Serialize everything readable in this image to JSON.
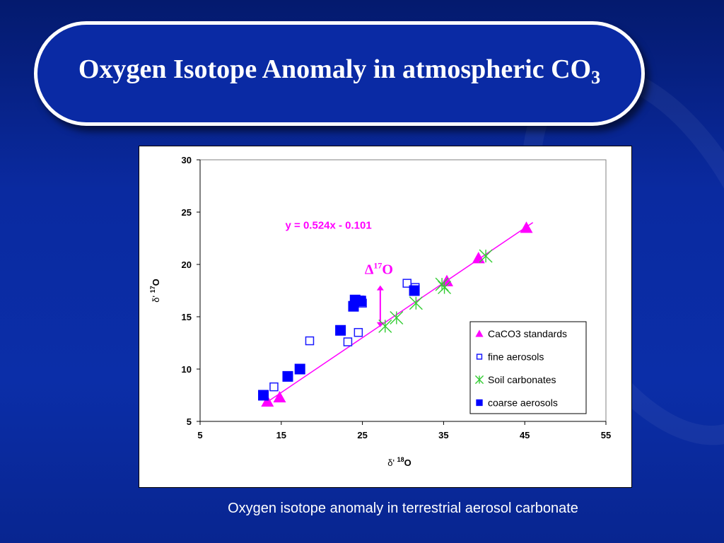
{
  "title": {
    "main": "Oxygen Isotope Anomaly in atmospheric CO",
    "subscript": "3"
  },
  "caption": "Oxygen  isotope anomaly in terrestrial aerosol carbonate",
  "chart_data": {
    "type": "scatter",
    "xlabel": "δ' 18O",
    "ylabel": "δ' 17O",
    "xlim": [
      5,
      55
    ],
    "ylim": [
      5,
      30
    ],
    "x_ticks": [
      5,
      15,
      25,
      35,
      45,
      55
    ],
    "y_ticks": [
      5,
      10,
      15,
      20,
      25,
      30
    ],
    "grid": false,
    "legend_position": "bottom-right",
    "trendline": {
      "equation": "y = 0.524x - 0.101",
      "slope": 0.524,
      "intercept": -0.101,
      "x_range": [
        13,
        46
      ],
      "color": "#ff00ff"
    },
    "annotation": {
      "label": "Δ17O",
      "x": 27.2,
      "y_from": 18.0,
      "y_to": 14.0,
      "color": "#ff00ff"
    },
    "series": [
      {
        "name": "CaCO3 standards",
        "marker": "triangle",
        "color": "#ff00ff",
        "points": [
          [
            13.3,
            6.9
          ],
          [
            14.8,
            7.3
          ],
          [
            35.4,
            18.4
          ],
          [
            39.3,
            20.6
          ],
          [
            45.2,
            23.5
          ]
        ]
      },
      {
        "name": "fine aerosols",
        "marker": "square-open",
        "color": "#1a1aff",
        "points": [
          [
            14.1,
            8.3
          ],
          [
            18.5,
            12.7
          ],
          [
            23.2,
            12.6
          ],
          [
            24.5,
            13.5
          ],
          [
            24.7,
            16.6
          ],
          [
            25.0,
            16.3
          ],
          [
            30.5,
            18.2
          ],
          [
            31.5,
            17.8
          ]
        ]
      },
      {
        "name": "Soil carbonates",
        "marker": "asterisk",
        "color": "#33cc33",
        "points": [
          [
            27.8,
            14.1
          ],
          [
            29.2,
            14.9
          ],
          [
            31.6,
            16.3
          ],
          [
            34.8,
            18.1
          ],
          [
            35.1,
            17.8
          ],
          [
            40.2,
            20.8
          ]
        ]
      },
      {
        "name": "coarse aerosols",
        "marker": "square-filled",
        "color": "#0000ff",
        "points": [
          [
            12.8,
            7.5
          ],
          [
            15.8,
            9.3
          ],
          [
            17.3,
            10.0
          ],
          [
            22.3,
            13.7
          ],
          [
            23.9,
            16.0
          ],
          [
            24.1,
            16.6
          ],
          [
            24.8,
            16.5
          ],
          [
            31.4,
            17.5
          ]
        ]
      }
    ]
  }
}
